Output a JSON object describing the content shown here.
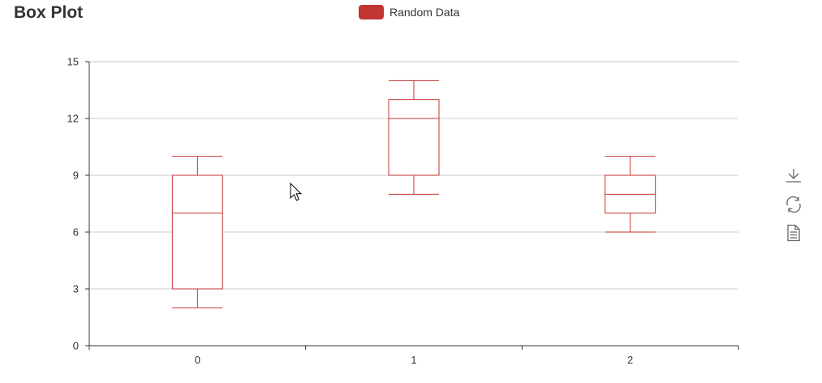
{
  "title": "Box Plot",
  "legend": {
    "label": "Random Data",
    "color": "#c23531"
  },
  "toolbox": {
    "icons": [
      "download-icon",
      "refresh-icon",
      "data-view-icon"
    ],
    "color": "#666666"
  },
  "chart_data": {
    "type": "boxplot",
    "categories": [
      "0",
      "1",
      "2"
    ],
    "series": [
      {
        "name": "Random Data",
        "boxes": [
          {
            "min": 2,
            "q1": 3,
            "median": 7,
            "q3": 9,
            "max": 10
          },
          {
            "min": 8,
            "q1": 9,
            "median": 12,
            "q3": 13,
            "max": 14
          },
          {
            "min": 6,
            "q1": 7,
            "median": 8,
            "q3": 9,
            "max": 10
          }
        ]
      }
    ],
    "yticks": [
      "0",
      "3",
      "6",
      "9",
      "12",
      "15"
    ],
    "ylim": [
      0,
      15
    ],
    "xlabel": "",
    "ylabel": "",
    "grid": true,
    "legend_position": "top-center"
  }
}
